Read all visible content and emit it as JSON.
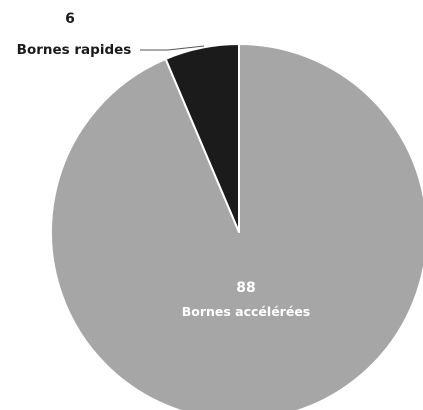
{
  "chart_data": {
    "type": "pie",
    "slices": [
      {
        "label": "Bornes accélérées",
        "value": 88,
        "value_label": "88",
        "color": "#a6a6a6"
      },
      {
        "label": "Bornes rapides",
        "value": 6,
        "value_label": "6",
        "color": "#1b1b1b"
      }
    ],
    "start_angle": "12 o'clock",
    "direction": "clockwise",
    "legend": "none",
    "label_color_inside": "#ffffff",
    "label_color_outside": "#1b1b1b"
  }
}
